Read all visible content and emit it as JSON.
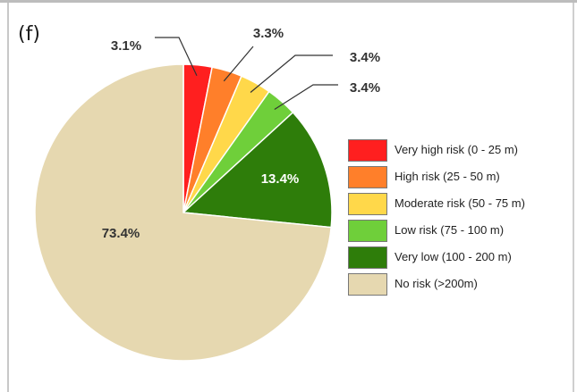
{
  "panel_label": "(f)",
  "chart_data": {
    "type": "pie",
    "title": "",
    "slices": [
      {
        "label": "Very high risk (0 - 25 m)",
        "value": 3.1,
        "display": "3.1%",
        "color": "#ff1f1f"
      },
      {
        "label": "High risk (25 - 50 m)",
        "value": 3.3,
        "display": "3.3%",
        "color": "#ff7f2a"
      },
      {
        "label": "Moderate risk (50 - 75 m)",
        "value": 3.4,
        "display": "3.4%",
        "color": "#ffd84a"
      },
      {
        "label": "Low risk (75 - 100 m)",
        "value": 3.4,
        "display": "3.4%",
        "color": "#6fcf3a"
      },
      {
        "label": "Very low (100 - 200 m)",
        "value": 13.4,
        "display": "13.4%",
        "color": "#2e7d0a"
      },
      {
        "label": "No risk (>200m)",
        "value": 73.4,
        "display": "73.4%",
        "color": "#e6d8b0"
      }
    ],
    "legend_position": "right"
  }
}
